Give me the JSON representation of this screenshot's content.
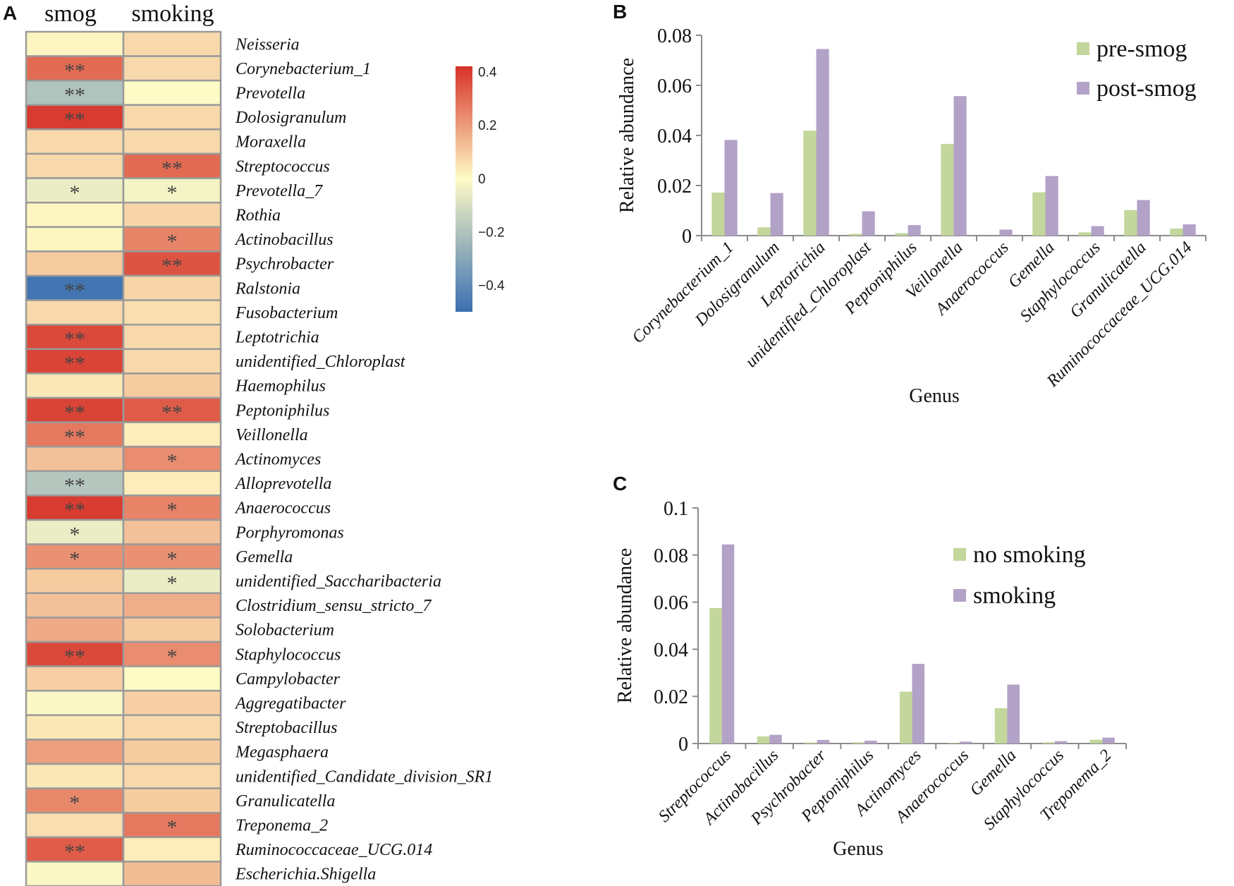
{
  "figure": {
    "panel_letters": [
      "A",
      "B",
      "C"
    ]
  },
  "heatmap": {
    "columns": [
      "smog",
      "smoking"
    ],
    "colormap": {
      "low": "#3a6fb0",
      "mid": "#fffbc6",
      "high": "#d63127"
    },
    "colorbar_ticks": [
      {
        "value": 0.4,
        "label": "0.4"
      },
      {
        "value": 0.2,
        "label": "0.2"
      },
      {
        "value": 0,
        "label": "0"
      },
      {
        "value": -0.2,
        "label": "−0.2"
      },
      {
        "value": -0.4,
        "label": "−0.4"
      }
    ],
    "colorbar_range": [
      -0.5,
      0.42
    ],
    "rows": [
      {
        "genus": "Neisseria",
        "smog": 0.01,
        "smoking": 0.07,
        "smog_sig": "",
        "smoking_sig": ""
      },
      {
        "genus": "Corynebacterium_1",
        "smog": 0.3,
        "smoking": 0.07,
        "smog_sig": "**",
        "smoking_sig": ""
      },
      {
        "genus": "Prevotella",
        "smog": -0.2,
        "smoking": 0.0,
        "smog_sig": "**",
        "smoking_sig": ""
      },
      {
        "genus": "Dolosigranulum",
        "smog": 0.4,
        "smoking": 0.07,
        "smog_sig": "**",
        "smoking_sig": ""
      },
      {
        "genus": "Moraxella",
        "smog": 0.07,
        "smoking": 0.07,
        "smog_sig": "",
        "smoking_sig": ""
      },
      {
        "genus": "Streptococcus",
        "smog": 0.07,
        "smoking": 0.3,
        "smog_sig": "",
        "smoking_sig": "**"
      },
      {
        "genus": "Prevotella_7",
        "smog": -0.05,
        "smoking": -0.03,
        "smog_sig": "*",
        "smoking_sig": "*"
      },
      {
        "genus": "Rothia",
        "smog": 0.01,
        "smoking": 0.08,
        "smog_sig": "",
        "smoking_sig": ""
      },
      {
        "genus": "Actinobacillus",
        "smog": 0.01,
        "smoking": 0.25,
        "smog_sig": "",
        "smoking_sig": "*"
      },
      {
        "genus": "Psychrobacter",
        "smog": 0.1,
        "smoking": 0.35,
        "smog_sig": "",
        "smoking_sig": "**"
      },
      {
        "genus": "Ralstonia",
        "smog": -0.48,
        "smoking": 0.08,
        "smog_sig": "**",
        "smoking_sig": ""
      },
      {
        "genus": "Fusobacterium",
        "smog": 0.07,
        "smoking": 0.06,
        "smog_sig": "",
        "smoking_sig": ""
      },
      {
        "genus": "Leptotrichia",
        "smog": 0.37,
        "smoking": 0.07,
        "smog_sig": "**",
        "smoking_sig": ""
      },
      {
        "genus": "unidentified_Chloroplast",
        "smog": 0.38,
        "smoking": 0.07,
        "smog_sig": "**",
        "smoking_sig": ""
      },
      {
        "genus": "Haemophilus",
        "smog": 0.04,
        "smoking": 0.1,
        "smog_sig": "",
        "smoking_sig": ""
      },
      {
        "genus": "Peptoniphilus",
        "smog": 0.38,
        "smoking": 0.33,
        "smog_sig": "**",
        "smoking_sig": "**"
      },
      {
        "genus": "Veillonella",
        "smog": 0.27,
        "smoking": 0.03,
        "smog_sig": "**",
        "smoking_sig": ""
      },
      {
        "genus": "Actinomyces",
        "smog": 0.12,
        "smoking": 0.23,
        "smog_sig": "",
        "smoking_sig": "*"
      },
      {
        "genus": "Alloprevotella",
        "smog": -0.19,
        "smoking": 0.03,
        "smog_sig": "**",
        "smoking_sig": ""
      },
      {
        "genus": "Anaerococcus",
        "smog": 0.4,
        "smoking": 0.25,
        "smog_sig": "**",
        "smoking_sig": "*"
      },
      {
        "genus": "Porphyromonas",
        "smog": -0.05,
        "smoking": 0.12,
        "smog_sig": "*",
        "smoking_sig": ""
      },
      {
        "genus": "Gemella",
        "smog": 0.22,
        "smoking": 0.22,
        "smog_sig": "*",
        "smoking_sig": "*"
      },
      {
        "genus": "unidentified_Saccharibacteria",
        "smog": 0.1,
        "smoking": -0.05,
        "smog_sig": "",
        "smoking_sig": "*"
      },
      {
        "genus": "Clostridium_sensu_stricto_7",
        "smog": 0.12,
        "smoking": 0.16,
        "smog_sig": "",
        "smoking_sig": ""
      },
      {
        "genus": "Solobacterium",
        "smog": 0.17,
        "smoking": 0.1,
        "smog_sig": "",
        "smoking_sig": ""
      },
      {
        "genus": "Staphylococcus",
        "smog": 0.37,
        "smoking": 0.23,
        "smog_sig": "**",
        "smoking_sig": "*"
      },
      {
        "genus": "Campylobacter",
        "smog": 0.09,
        "smoking": 0.0,
        "smog_sig": "",
        "smoking_sig": ""
      },
      {
        "genus": "Aggregatibacter",
        "smog": -0.01,
        "smoking": 0.09,
        "smog_sig": "",
        "smoking_sig": ""
      },
      {
        "genus": "Streptobacillus",
        "smog": 0.04,
        "smoking": 0.07,
        "smog_sig": "",
        "smoking_sig": ""
      },
      {
        "genus": "Megasphaera",
        "smog": 0.19,
        "smoking": 0.1,
        "smog_sig": "",
        "smoking_sig": ""
      },
      {
        "genus": "unidentified_Candidate_division_SR1",
        "smog": 0.04,
        "smoking": 0.07,
        "smog_sig": "",
        "smoking_sig": ""
      },
      {
        "genus": "Granulicatella",
        "smog": 0.24,
        "smoking": 0.1,
        "smog_sig": "*",
        "smoking_sig": ""
      },
      {
        "genus": "Treponema_2",
        "smog": 0.06,
        "smoking": 0.27,
        "smog_sig": "",
        "smoking_sig": "*"
      },
      {
        "genus": "Ruminococcaceae_UCG.014",
        "smog": 0.33,
        "smoking": 0.03,
        "smog_sig": "**",
        "smoking_sig": ""
      },
      {
        "genus": "Escherichia.Shigella",
        "smog": -0.01,
        "smoking": 0.13,
        "smog_sig": "",
        "smoking_sig": ""
      }
    ]
  },
  "chart_data": [
    {
      "type": "bar",
      "panel": "B",
      "title": "",
      "xlabel": "Genus",
      "ylabel": "Relative abundance",
      "ylim": [
        0,
        0.08
      ],
      "yticks": [
        0,
        0.02,
        0.04,
        0.06,
        0.08
      ],
      "ytick_labels": [
        "0",
        "0.02",
        "0.04",
        "0.06",
        "0.08"
      ],
      "legend_position": "top-right",
      "categories": [
        "Corynebacterium_1",
        "Dolosigranulum",
        "Leptotrichia",
        "unidentified_Chloroplast",
        "Peptoniphilus",
        "Veillonella",
        "Anaerococcus",
        "Gemella",
        "Staphylococcus",
        "Granulicatella",
        "Ruminococcaceae_UCG.014"
      ],
      "series": [
        {
          "name": "pre-smog",
          "color": "#c3d69b",
          "values": [
            0.0172,
            0.0033,
            0.0419,
            0.0007,
            0.001,
            0.0366,
            0.0,
            0.0173,
            0.0013,
            0.0102,
            0.0028
          ]
        },
        {
          "name": "post-smog",
          "color": "#b3a2c7",
          "values": [
            0.0382,
            0.017,
            0.0745,
            0.0097,
            0.0042,
            0.0557,
            0.0024,
            0.0238,
            0.0038,
            0.0142,
            0.0045
          ]
        }
      ]
    },
    {
      "type": "bar",
      "panel": "C",
      "title": "",
      "xlabel": "Genus",
      "ylabel": "Relative abundance",
      "ylim": [
        0,
        0.1
      ],
      "yticks": [
        0,
        0.02,
        0.04,
        0.06,
        0.08,
        0.1
      ],
      "ytick_labels": [
        "0",
        "0.02",
        "0.04",
        "0.06",
        "0.08",
        "0.1"
      ],
      "legend_position": "top-right",
      "categories": [
        "Streptococcus",
        "Actinobacillus",
        "Psychrobacter",
        "Peptoniphilus",
        "Actinomyces",
        "Anaerococcus",
        "Gemella",
        "Staphylococcus",
        "Treponema_2"
      ],
      "series": [
        {
          "name": "no smoking",
          "color": "#c3d69b",
          "values": [
            0.0575,
            0.003,
            0.0004,
            0.0005,
            0.022,
            0.0002,
            0.015,
            0.0005,
            0.0016
          ]
        },
        {
          "name": "smoking",
          "color": "#b3a2c7",
          "values": [
            0.0845,
            0.0037,
            0.0015,
            0.0012,
            0.0338,
            0.0008,
            0.025,
            0.001,
            0.0025
          ]
        }
      ]
    }
  ]
}
